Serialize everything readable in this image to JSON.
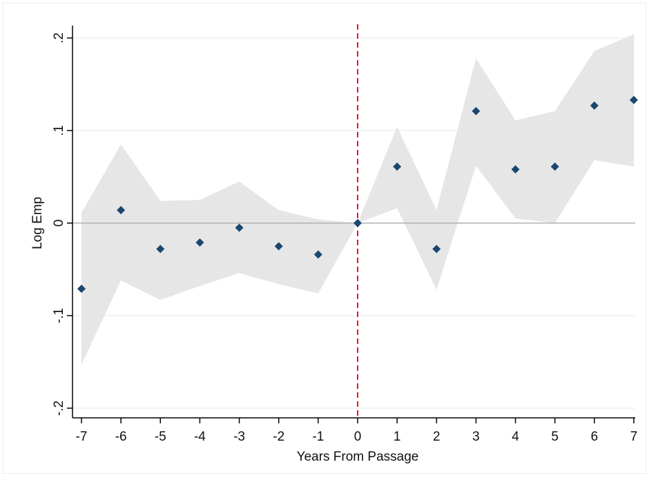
{
  "chart_data": {
    "type": "scatter",
    "title": "",
    "xlabel": "Years From Passage",
    "ylabel": "Log Emp",
    "xlim": [
      -7,
      7
    ],
    "ylim": [
      -0.2,
      0.2
    ],
    "x_ticks": [
      -7,
      -6,
      -5,
      -4,
      -3,
      -2,
      -1,
      0,
      1,
      2,
      3,
      4,
      5,
      6,
      7
    ],
    "x_tick_labels": [
      "-7",
      "-6",
      "-5",
      "-4",
      "-3",
      "-2",
      "-1",
      "0",
      "1",
      "2",
      "3",
      "4",
      "5",
      "6",
      "7"
    ],
    "y_ticks": [
      -0.2,
      -0.1,
      0,
      0.1,
      0.2
    ],
    "y_tick_labels": [
      "-.2",
      "-.1",
      "0",
      ".1",
      ".2"
    ],
    "grid": true,
    "reference_lines": {
      "horizontal_y": 0,
      "vertical_x": 0
    },
    "x": [
      -7,
      -6,
      -5,
      -4,
      -3,
      -2,
      -1,
      0,
      1,
      2,
      3,
      4,
      5,
      6,
      7
    ],
    "point_estimate": [
      -0.071,
      0.014,
      -0.028,
      -0.021,
      -0.005,
      -0.025,
      -0.034,
      0.0,
      0.061,
      -0.028,
      0.121,
      0.058,
      0.061,
      0.127,
      0.133
    ],
    "ci_lower": [
      -0.153,
      -0.062,
      -0.083,
      -0.068,
      -0.054,
      -0.066,
      -0.076,
      0.0,
      0.016,
      -0.072,
      0.062,
      0.005,
      0.0,
      0.068,
      0.061
    ],
    "ci_upper": [
      0.011,
      0.085,
      0.024,
      0.025,
      0.045,
      0.014,
      0.004,
      0.0,
      0.104,
      0.014,
      0.178,
      0.111,
      0.121,
      0.186,
      0.204
    ],
    "colors": {
      "marker": "#1a476f",
      "ci_band": "#e6e6e6",
      "vertical_line": "#e8141c",
      "zero_line": "#b0b0b0",
      "grid": "#eaf2f3"
    }
  }
}
